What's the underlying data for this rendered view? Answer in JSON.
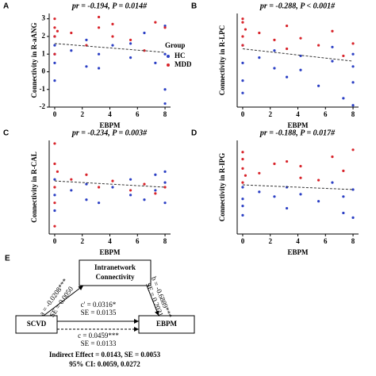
{
  "chart_data": [
    {
      "type": "scatter",
      "panel": "A",
      "title": "pr = -0.194, P = 0.014#",
      "ylabel": "Connectivity in R-aANG",
      "xlabel": "EBPM",
      "xlim": [
        -0.4,
        8.4
      ],
      "xticks": [
        0,
        2,
        4,
        6,
        8
      ],
      "ylim": [
        -2,
        3.3
      ],
      "yticks": [
        -2,
        -1,
        0,
        1,
        2,
        3
      ],
      "legend_title": "Group",
      "series": [
        {
          "name": "HC",
          "color": "#2b3fc4",
          "x": [
            0,
            0,
            0,
            0,
            0,
            1.2,
            2.3,
            2.3,
            3.2,
            3.2,
            4.2,
            5.5,
            5.5,
            6.5,
            7.3,
            8,
            8,
            8,
            8
          ],
          "values": [
            1.5,
            0.5,
            2,
            -0.5,
            1,
            1.2,
            1.8,
            0.3,
            1,
            0.2,
            1.5,
            0.8,
            1.6,
            2.2,
            0.5,
            1,
            -1,
            -1.8,
            2.6
          ]
        },
        {
          "name": "MDD",
          "color": "#d8232a",
          "x": [
            0,
            0,
            0,
            0,
            0.2,
            1.2,
            2.3,
            3.2,
            3.2,
            4.2,
            4.2,
            5.5,
            6.5,
            7.3,
            8
          ],
          "values": [
            2.5,
            3,
            1,
            2,
            2.3,
            2.2,
            1.5,
            3.1,
            2.5,
            2,
            2.7,
            1.8,
            1.2,
            2.8,
            2.5
          ]
        }
      ],
      "fit": {
        "x": [
          0,
          8
        ],
        "y": [
          1.6,
          1.1
        ]
      }
    },
    {
      "type": "scatter",
      "panel": "B",
      "title": "pr = -0.288, P < 0.001#",
      "ylabel": "Connectivity in R-LPC",
      "xlabel": "EBPM",
      "xlim": [
        -0.4,
        8.4
      ],
      "xticks": [
        0,
        2,
        4,
        6,
        8
      ],
      "ylim": [
        -2,
        3.3
      ],
      "series": [
        {
          "color": "#2b3fc4",
          "x": [
            0,
            0,
            0,
            0,
            1.2,
            2.3,
            2.3,
            3.2,
            4.2,
            4.2,
            5.5,
            6.5,
            6.5,
            7.3,
            8,
            8,
            8,
            8
          ],
          "values": [
            0.5,
            -0.5,
            1.5,
            -1.2,
            0.8,
            0.2,
            1.2,
            -0.3,
            0.9,
            0.1,
            -0.8,
            0.6,
            1.4,
            -1.5,
            0.3,
            -0.6,
            1,
            -1.9
          ]
        },
        {
          "color": "#d8232a",
          "x": [
            0,
            0,
            0,
            0,
            0.2,
            1.2,
            2.3,
            3.2,
            3.2,
            4.2,
            5.5,
            6.5,
            7.3,
            8
          ],
          "values": [
            2.8,
            2,
            3,
            1.5,
            2.4,
            2.2,
            1.8,
            2.6,
            1.3,
            1.9,
            1.5,
            2.3,
            0.9,
            1.6
          ]
        }
      ],
      "fit": {
        "x": [
          0,
          8
        ],
        "y": [
          1.3,
          0.6
        ]
      }
    },
    {
      "type": "scatter",
      "panel": "C",
      "title": "pr = -0.234, P = 0.003#",
      "ylabel": "Connectivity in R-CAL",
      "xlabel": "EBPM",
      "xlim": [
        -0.4,
        8.4
      ],
      "xticks": [
        0,
        2,
        4,
        6,
        8
      ],
      "ylim": [
        -1,
        5
      ],
      "series": [
        {
          "color": "#2b3fc4",
          "x": [
            0,
            0,
            0,
            1.2,
            2.3,
            2.3,
            3.2,
            4.2,
            5.5,
            5.5,
            6.5,
            7.3,
            7.3,
            8,
            8,
            8
          ],
          "values": [
            1.5,
            0.5,
            2.5,
            1.8,
            1.2,
            2.2,
            1,
            2,
            1.5,
            2.5,
            1.2,
            2.8,
            1.8,
            2.3,
            1,
            3
          ]
        },
        {
          "color": "#d8232a",
          "x": [
            0,
            0,
            0,
            0,
            0,
            0.2,
            1.2,
            2.3,
            3.2,
            4.2,
            5.5,
            6.5,
            7.3,
            8
          ],
          "values": [
            4.8,
            3.5,
            2,
            1,
            -0.5,
            3,
            2.5,
            2.8,
            2,
            2.4,
            1.8,
            2.2,
            1.6,
            2
          ]
        }
      ],
      "fit": {
        "x": [
          0,
          8
        ],
        "y": [
          2.4,
          2
        ]
      }
    },
    {
      "type": "scatter",
      "panel": "D",
      "title": "pr = -0.188, P = 0.017#",
      "ylabel": "Connectivity in R-IPG",
      "xlabel": "EBPM",
      "xlim": [
        -0.4,
        8.4
      ],
      "xticks": [
        0,
        2,
        4,
        6,
        8
      ],
      "ylim": [
        -1,
        3
      ],
      "series": [
        {
          "color": "#2b3fc4",
          "x": [
            0,
            0,
            0,
            0,
            1.2,
            2.3,
            3.2,
            3.2,
            4.2,
            5.5,
            6.5,
            7.3,
            7.3,
            8,
            8
          ],
          "values": [
            0.5,
            1,
            -0.2,
            0.2,
            0.8,
            0.6,
            1,
            0.1,
            0.7,
            0.4,
            1.2,
            -0.1,
            0.6,
            0.9,
            -0.3
          ]
        },
        {
          "color": "#d8232a",
          "x": [
            0,
            0,
            0,
            0,
            0.2,
            1.2,
            2.3,
            3.2,
            4.2,
            4.2,
            5.5,
            6.5,
            7.3,
            8
          ],
          "values": [
            2.5,
            1.8,
            1.2,
            2.2,
            1.5,
            1.6,
            2,
            2.1,
            1.4,
            1.9,
            1.3,
            2.3,
            1.7,
            2.6
          ]
        }
      ],
      "fit": {
        "x": [
          0,
          8
        ],
        "y": [
          1.1,
          0.9
        ]
      }
    }
  ],
  "diagram": {
    "panel": "E",
    "nodes": [
      {
        "label_lines": [
          "Intranetwork",
          "Connectivity"
        ]
      },
      {
        "label_lines": [
          "SCVD"
        ]
      },
      {
        "label_lines": [
          "EBPM"
        ]
      }
    ],
    "a": [
      "a = -0.0208***",
      "SE = 0.0050"
    ],
    "b": [
      "b = -0.6889***",
      "SE = 0.2021"
    ],
    "c_prime": [
      "c' = 0.0316*",
      "SE = 0.0135"
    ],
    "c": [
      "c = 0.0459***",
      "SE = 0.0133"
    ],
    "footer": [
      "Indirect Effect = 0.0143, SE = 0.0053",
      "95% CI: 0.0059, 0.0272"
    ]
  }
}
